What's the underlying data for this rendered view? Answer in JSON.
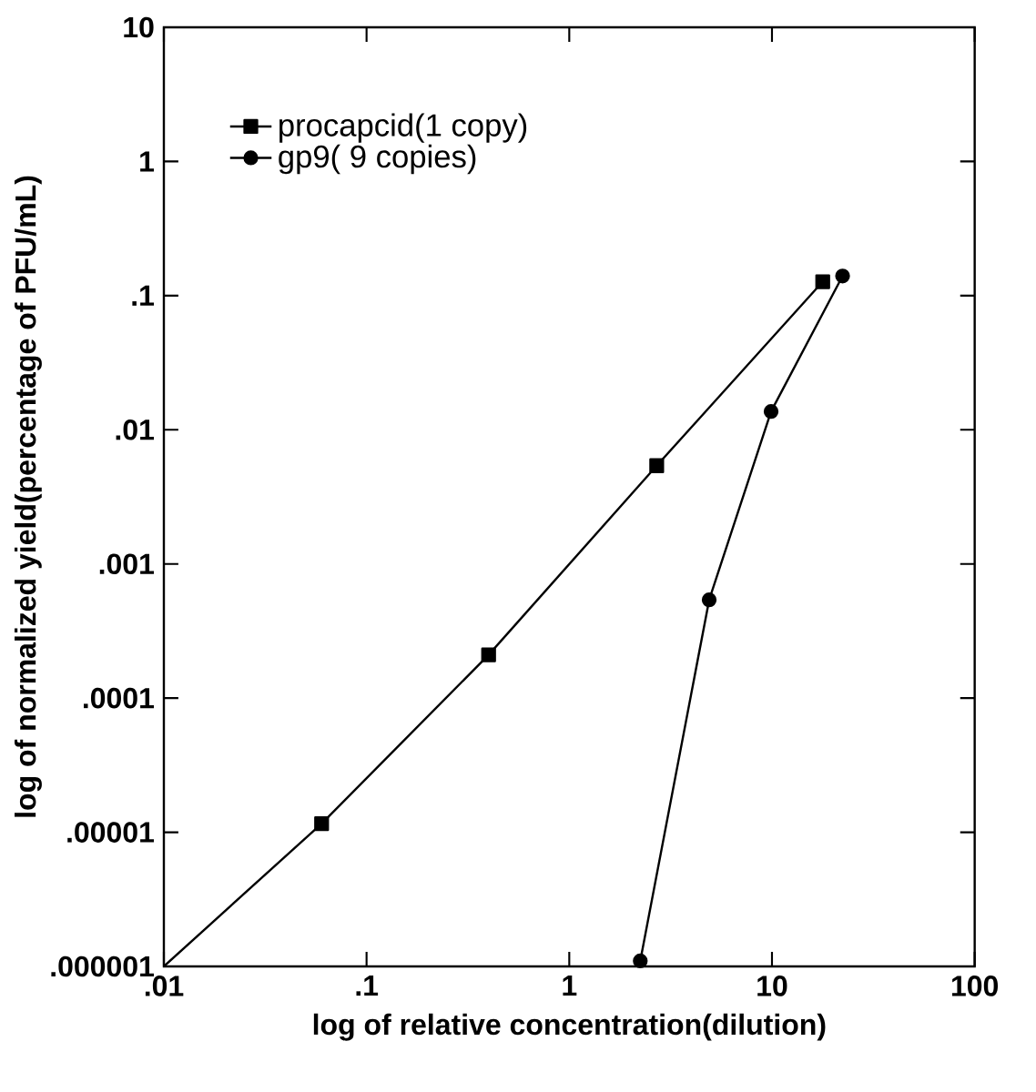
{
  "chart_data": {
    "type": "line",
    "xlabel": "log of relative concentration(dilution)",
    "ylabel": "log of normalized yield(percentage of  PFU/mL)",
    "log": "xy",
    "xlim": [
      0.01,
      100
    ],
    "ylim": [
      1e-06,
      10
    ],
    "xticks": [
      {
        "value": 0.01,
        "label": ".01"
      },
      {
        "value": 0.1,
        "label": ".1"
      },
      1,
      10,
      100
    ],
    "yticks": [
      {
        "value": 1e-06,
        "label": ".000001"
      },
      {
        "value": 1e-05,
        "label": ".00001"
      },
      {
        "value": 0.0001,
        "label": ".0001"
      },
      {
        "value": 0.001,
        "label": ".001"
      },
      {
        "value": 0.01,
        "label": ".01"
      },
      {
        "value": 0.1,
        "label": ".1"
      },
      1,
      10
    ],
    "legend": "top left",
    "grid": false,
    "series": [
      {
        "name": "procapcid(1 copy)",
        "color": "#000000",
        "marker": "square",
        "x": [
          0.01,
          0.06,
          0.4,
          2.7,
          17.8
        ],
        "values": [
          1e-06,
          1.16e-05,
          0.00021,
          0.0054,
          0.127
        ]
      },
      {
        "name": "gp9(  9 copies)",
        "color": "#000000",
        "marker": "circle",
        "x": [
          2.24,
          4.9,
          9.9,
          22.3
        ],
        "values": [
          1.1e-06,
          0.00054,
          0.0137,
          0.14
        ]
      }
    ]
  }
}
